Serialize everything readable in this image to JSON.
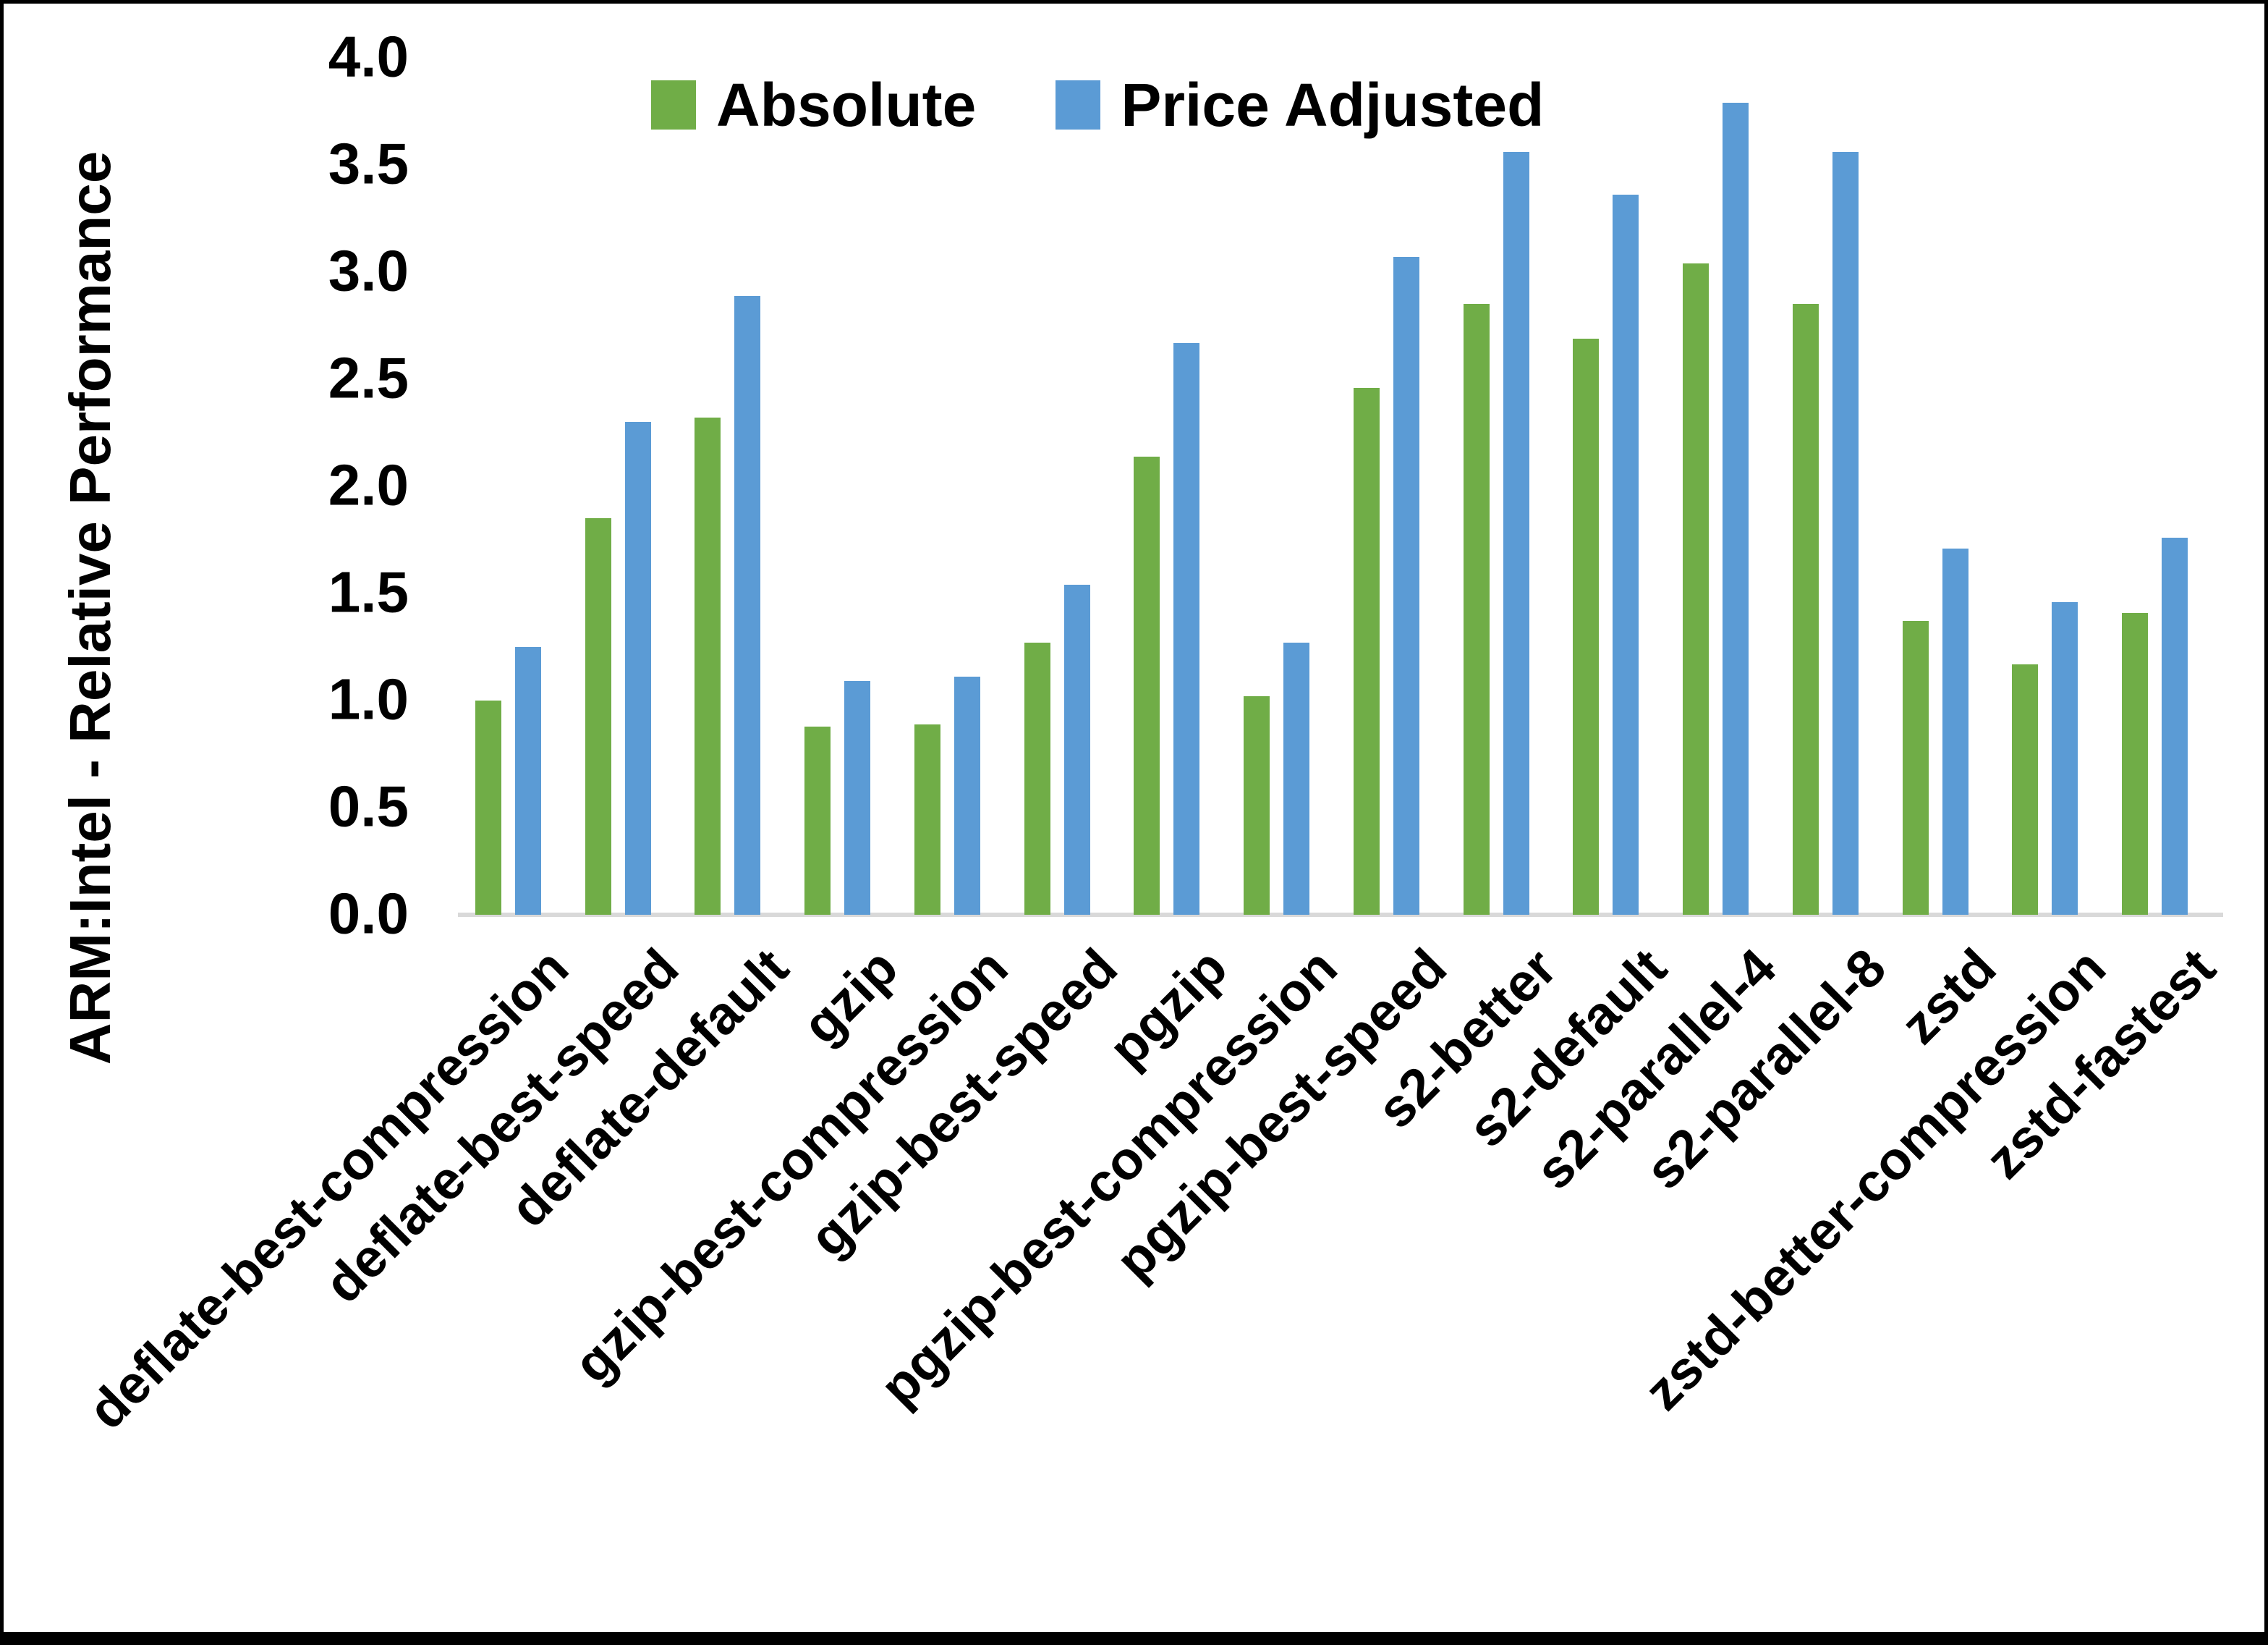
{
  "chart_data": {
    "type": "bar",
    "title": "",
    "xlabel": "",
    "ylabel": "ARM:Intel - Relative Performance",
    "ylim": [
      0,
      4
    ],
    "ytick_labels": [
      "0.0",
      "0.5",
      "1.0",
      "1.5",
      "2.0",
      "2.5",
      "3.0",
      "3.5",
      "4.0"
    ],
    "grid": false,
    "legend_position": "top-center",
    "categories": [
      "deflate-best-compression",
      "deflate-best-speed",
      "deflate-default",
      "gzip",
      "gzip-best-compression",
      "gzip-best-speed",
      "pgzip",
      "pgzip-best-compression",
      "pgzip-best-speed",
      "s2-better",
      "s2-default",
      "s2-parallel-4",
      "s2-parallel-8",
      "zstd",
      "zstd-better-compression",
      "zstd-fastest"
    ],
    "series": [
      {
        "name": "Absolute",
        "color": "#70AD47",
        "values": [
          1.0,
          1.85,
          2.32,
          0.88,
          0.89,
          1.27,
          2.14,
          1.02,
          2.46,
          2.85,
          2.69,
          3.04,
          2.85,
          1.37,
          1.17,
          1.41
        ]
      },
      {
        "name": "Price Adjusted",
        "color": "#5B9BD5",
        "values": [
          1.25,
          2.3,
          2.89,
          1.09,
          1.11,
          1.54,
          2.67,
          1.27,
          3.07,
          3.56,
          3.36,
          3.79,
          3.56,
          1.71,
          1.46,
          1.76
        ]
      }
    ]
  },
  "colors": {
    "background": "#FFFFFF",
    "frame_border": "#000000",
    "axis_line": "#D9D9D9",
    "text": "#000000"
  }
}
